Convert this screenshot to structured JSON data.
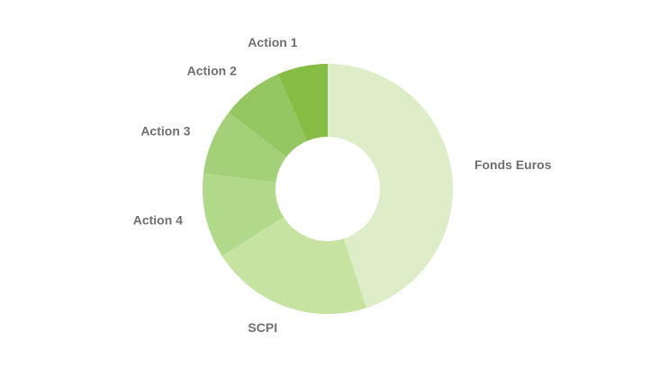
{
  "chart_data": {
    "type": "donut",
    "categories": [
      "Fonds Euros",
      "SCPI",
      "Action 4",
      "Action 3",
      "Action 2",
      "Action 1"
    ],
    "values": [
      45,
      21,
      11,
      8.5,
      8,
      6.5
    ],
    "colors": [
      "#dcedc7",
      "#c6e3a1",
      "#b0d98a",
      "#a3d079",
      "#94c661",
      "#88bd45"
    ]
  }
}
